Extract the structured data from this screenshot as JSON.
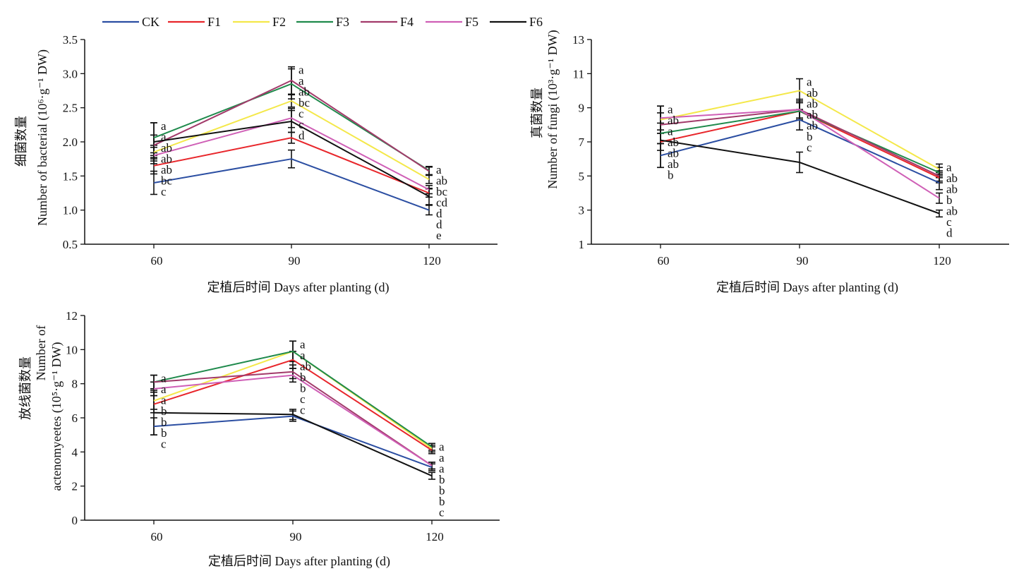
{
  "legend": {
    "entries": [
      {
        "name": "CK",
        "color": "#2b4ea2"
      },
      {
        "name": "F1",
        "color": "#e8262b"
      },
      {
        "name": "F2",
        "color": "#f4e84a"
      },
      {
        "name": "F3",
        "color": "#1f8a4c"
      },
      {
        "name": "F4",
        "color": "#a23a6a"
      },
      {
        "name": "F5",
        "color": "#cf5fb6"
      },
      {
        "name": "F6",
        "color": "#111111"
      }
    ]
  },
  "chart_data": [
    {
      "type": "line",
      "ylabel_cn": "细菌数量",
      "ylabel_en": "Number of bacterial (10⁶·g⁻¹ DW)",
      "xlabel": "定植后时间 Days after planting (d)",
      "x": [
        "60",
        "90",
        "120"
      ],
      "ylim": [
        0.5,
        3.5
      ],
      "yticks": [
        "0.5",
        "1.0",
        "1.5",
        "2.0",
        "2.5",
        "3.0",
        "3.5"
      ],
      "series": [
        {
          "name": "CK",
          "values": [
            1.4,
            1.75,
            1.0
          ],
          "errors": [
            0.17,
            0.13,
            0.07
          ]
        },
        {
          "name": "F1",
          "values": [
            1.65,
            2.06,
            1.25
          ],
          "errors": [
            0.12,
            0.08,
            0.06
          ]
        },
        {
          "name": "F2",
          "values": [
            1.85,
            2.6,
            1.45
          ],
          "errors": [
            0.1,
            0.09,
            0.06
          ]
        },
        {
          "name": "F3",
          "values": [
            2.06,
            2.85,
            1.58
          ],
          "errors": [
            0.22,
            0.22,
            0.06
          ]
        },
        {
          "name": "F4",
          "values": [
            1.95,
            2.9,
            1.57
          ],
          "errors": [
            0.15,
            0.2,
            0.06
          ]
        },
        {
          "name": "F5",
          "values": [
            1.8,
            2.35,
            1.3
          ],
          "errors": [
            0.12,
            0.14,
            0.06
          ]
        },
        {
          "name": "F6",
          "values": [
            2.0,
            2.3,
            1.2
          ],
          "errors": [
            0.28,
            0.16,
            0.12
          ]
        }
      ],
      "letters": [
        [
          "a",
          "a",
          "ab",
          "ab",
          "ab",
          "bc",
          "c"
        ],
        [
          "a",
          "a",
          "ab",
          "bc",
          "c",
          "c",
          "d"
        ],
        [
          "a",
          "ab",
          "bc",
          "cd",
          "d",
          "d",
          "e"
        ]
      ]
    },
    {
      "type": "line",
      "ylabel_cn": "真菌数量",
      "ylabel_en": "Number of fungi (10³·g⁻¹ DW)",
      "xlabel": "定植后时间 Days after planting (d)",
      "x": [
        "60",
        "90",
        "120"
      ],
      "ylim": [
        1,
        13
      ],
      "yticks": [
        "1",
        "3",
        "5",
        "7",
        "9",
        "11",
        "13"
      ],
      "series": [
        {
          "name": "CK",
          "values": [
            6.2,
            8.3,
            4.6
          ],
          "errors": [
            0.7,
            0.6,
            0.4
          ]
        },
        {
          "name": "F1",
          "values": [
            7.0,
            8.8,
            4.9
          ],
          "errors": [
            0.5,
            0.5,
            0.3
          ]
        },
        {
          "name": "F2",
          "values": [
            8.3,
            10.0,
            5.4
          ],
          "errors": [
            0.8,
            0.7,
            0.3
          ]
        },
        {
          "name": "F3",
          "values": [
            7.5,
            8.8,
            5.2
          ],
          "errors": [
            0.6,
            0.5,
            0.3
          ]
        },
        {
          "name": "F4",
          "values": [
            8.0,
            8.9,
            5.0
          ],
          "errors": [
            1.1,
            0.6,
            0.3
          ]
        },
        {
          "name": "F5",
          "values": [
            8.4,
            8.9,
            3.7
          ],
          "errors": [
            0.7,
            0.5,
            0.3
          ]
        },
        {
          "name": "F6",
          "values": [
            7.1,
            5.8,
            2.8
          ],
          "errors": [
            1.6,
            0.6,
            0.2
          ]
        }
      ],
      "letters": [
        [
          "a",
          "ab",
          "a",
          "ab",
          "ab",
          "ab",
          "b"
        ],
        [
          "a",
          "ab",
          "ab",
          "ab",
          "ab",
          "b",
          "c"
        ],
        [
          "a",
          "ab",
          "ab",
          "b",
          "ab",
          "c",
          "d"
        ]
      ]
    },
    {
      "type": "line",
      "ylabel_cn": "放线菌数量",
      "ylabel_en_line1": "Number of",
      "ylabel_en_line2": "actenomyeetes (10⁵·g⁻¹ DW)",
      "xlabel": "定植后时间 Days after planting (d)",
      "x": [
        "60",
        "90",
        "120"
      ],
      "ylim": [
        0,
        12
      ],
      "yticks": [
        "0",
        "2",
        "4",
        "6",
        "8",
        "10",
        "12"
      ],
      "series": [
        {
          "name": "CK",
          "values": [
            5.5,
            6.1,
            3.1
          ],
          "errors": [
            0.5,
            0.3,
            0.2
          ]
        },
        {
          "name": "F1",
          "values": [
            6.8,
            9.4,
            4.1
          ],
          "errors": [
            0.5,
            0.5,
            0.2
          ]
        },
        {
          "name": "F2",
          "values": [
            7.0,
            9.9,
            4.2
          ],
          "errors": [
            0.5,
            0.6,
            0.2
          ]
        },
        {
          "name": "F3",
          "values": [
            8.1,
            9.9,
            4.3
          ],
          "errors": [
            0.4,
            0.6,
            0.2
          ]
        },
        {
          "name": "F4",
          "values": [
            8.1,
            8.7,
            3.2
          ],
          "errors": [
            0.4,
            0.4,
            0.2
          ]
        },
        {
          "name": "F5",
          "values": [
            7.7,
            8.5,
            3.2
          ],
          "errors": [
            0.4,
            0.4,
            0.2
          ]
        },
        {
          "name": "F6",
          "values": [
            6.3,
            6.2,
            2.6
          ],
          "errors": [
            1.3,
            0.3,
            0.2
          ]
        }
      ],
      "letters": [
        [
          "a",
          "a",
          "a",
          "b",
          "b",
          "b",
          "c"
        ],
        [
          "a",
          "a",
          "ab",
          "b",
          "b",
          "c",
          "c"
        ],
        [
          "a",
          "a",
          "a",
          "b",
          "b",
          "b",
          "c"
        ]
      ]
    }
  ]
}
